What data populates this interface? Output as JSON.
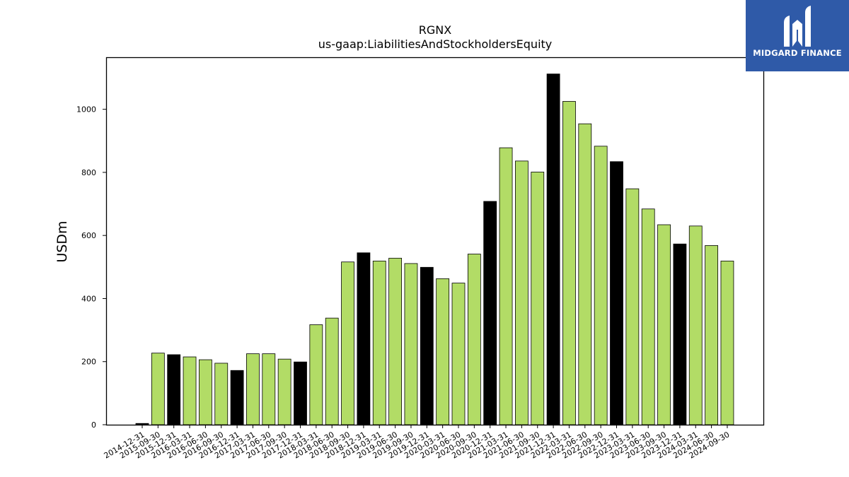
{
  "brand": {
    "name": "MIDGARD FINANCE",
    "color": "#2f5aa8"
  },
  "chart_data": {
    "type": "bar",
    "title": "RGNX",
    "subtitle": "us-gaap:LiabilitiesAndStockholdersEquity",
    "ylabel": "USDm",
    "xlabel": "",
    "ylim": [
      0,
      1165
    ],
    "yticks": [
      0,
      200,
      400,
      600,
      800,
      1000
    ],
    "grid": false,
    "legend": "none",
    "colors": {
      "quarter": "#b2dc66",
      "year_end": "#000000"
    },
    "categories": [
      "2014-12-31",
      "2015-09-30",
      "2015-12-31",
      "2016-03-31",
      "2016-06-30",
      "2016-09-30",
      "2016-12-31",
      "2017-03-31",
      "2017-06-30",
      "2017-09-30",
      "2017-12-31",
      "2018-03-31",
      "2018-06-30",
      "2018-09-30",
      "2018-12-31",
      "2019-03-31",
      "2019-06-30",
      "2019-09-30",
      "2019-12-31",
      "2020-03-31",
      "2020-06-30",
      "2020-09-30",
      "2020-12-31",
      "2021-03-31",
      "2021-06-30",
      "2021-09-30",
      "2021-12-31",
      "2022-03-31",
      "2022-06-30",
      "2022-09-30",
      "2022-12-31",
      "2023-03-31",
      "2023-06-30",
      "2023-09-30",
      "2023-12-31",
      "2024-03-31",
      "2024-06-30",
      "2024-09-30"
    ],
    "values": [
      4,
      227,
      222,
      215,
      206,
      195,
      172,
      225,
      225,
      208,
      199,
      317,
      338,
      516,
      545,
      519,
      528,
      511,
      499,
      463,
      449,
      541,
      708,
      878,
      836,
      801,
      1112,
      1025,
      954,
      883,
      834,
      748,
      684,
      634,
      573,
      630,
      568,
      519
    ]
  }
}
